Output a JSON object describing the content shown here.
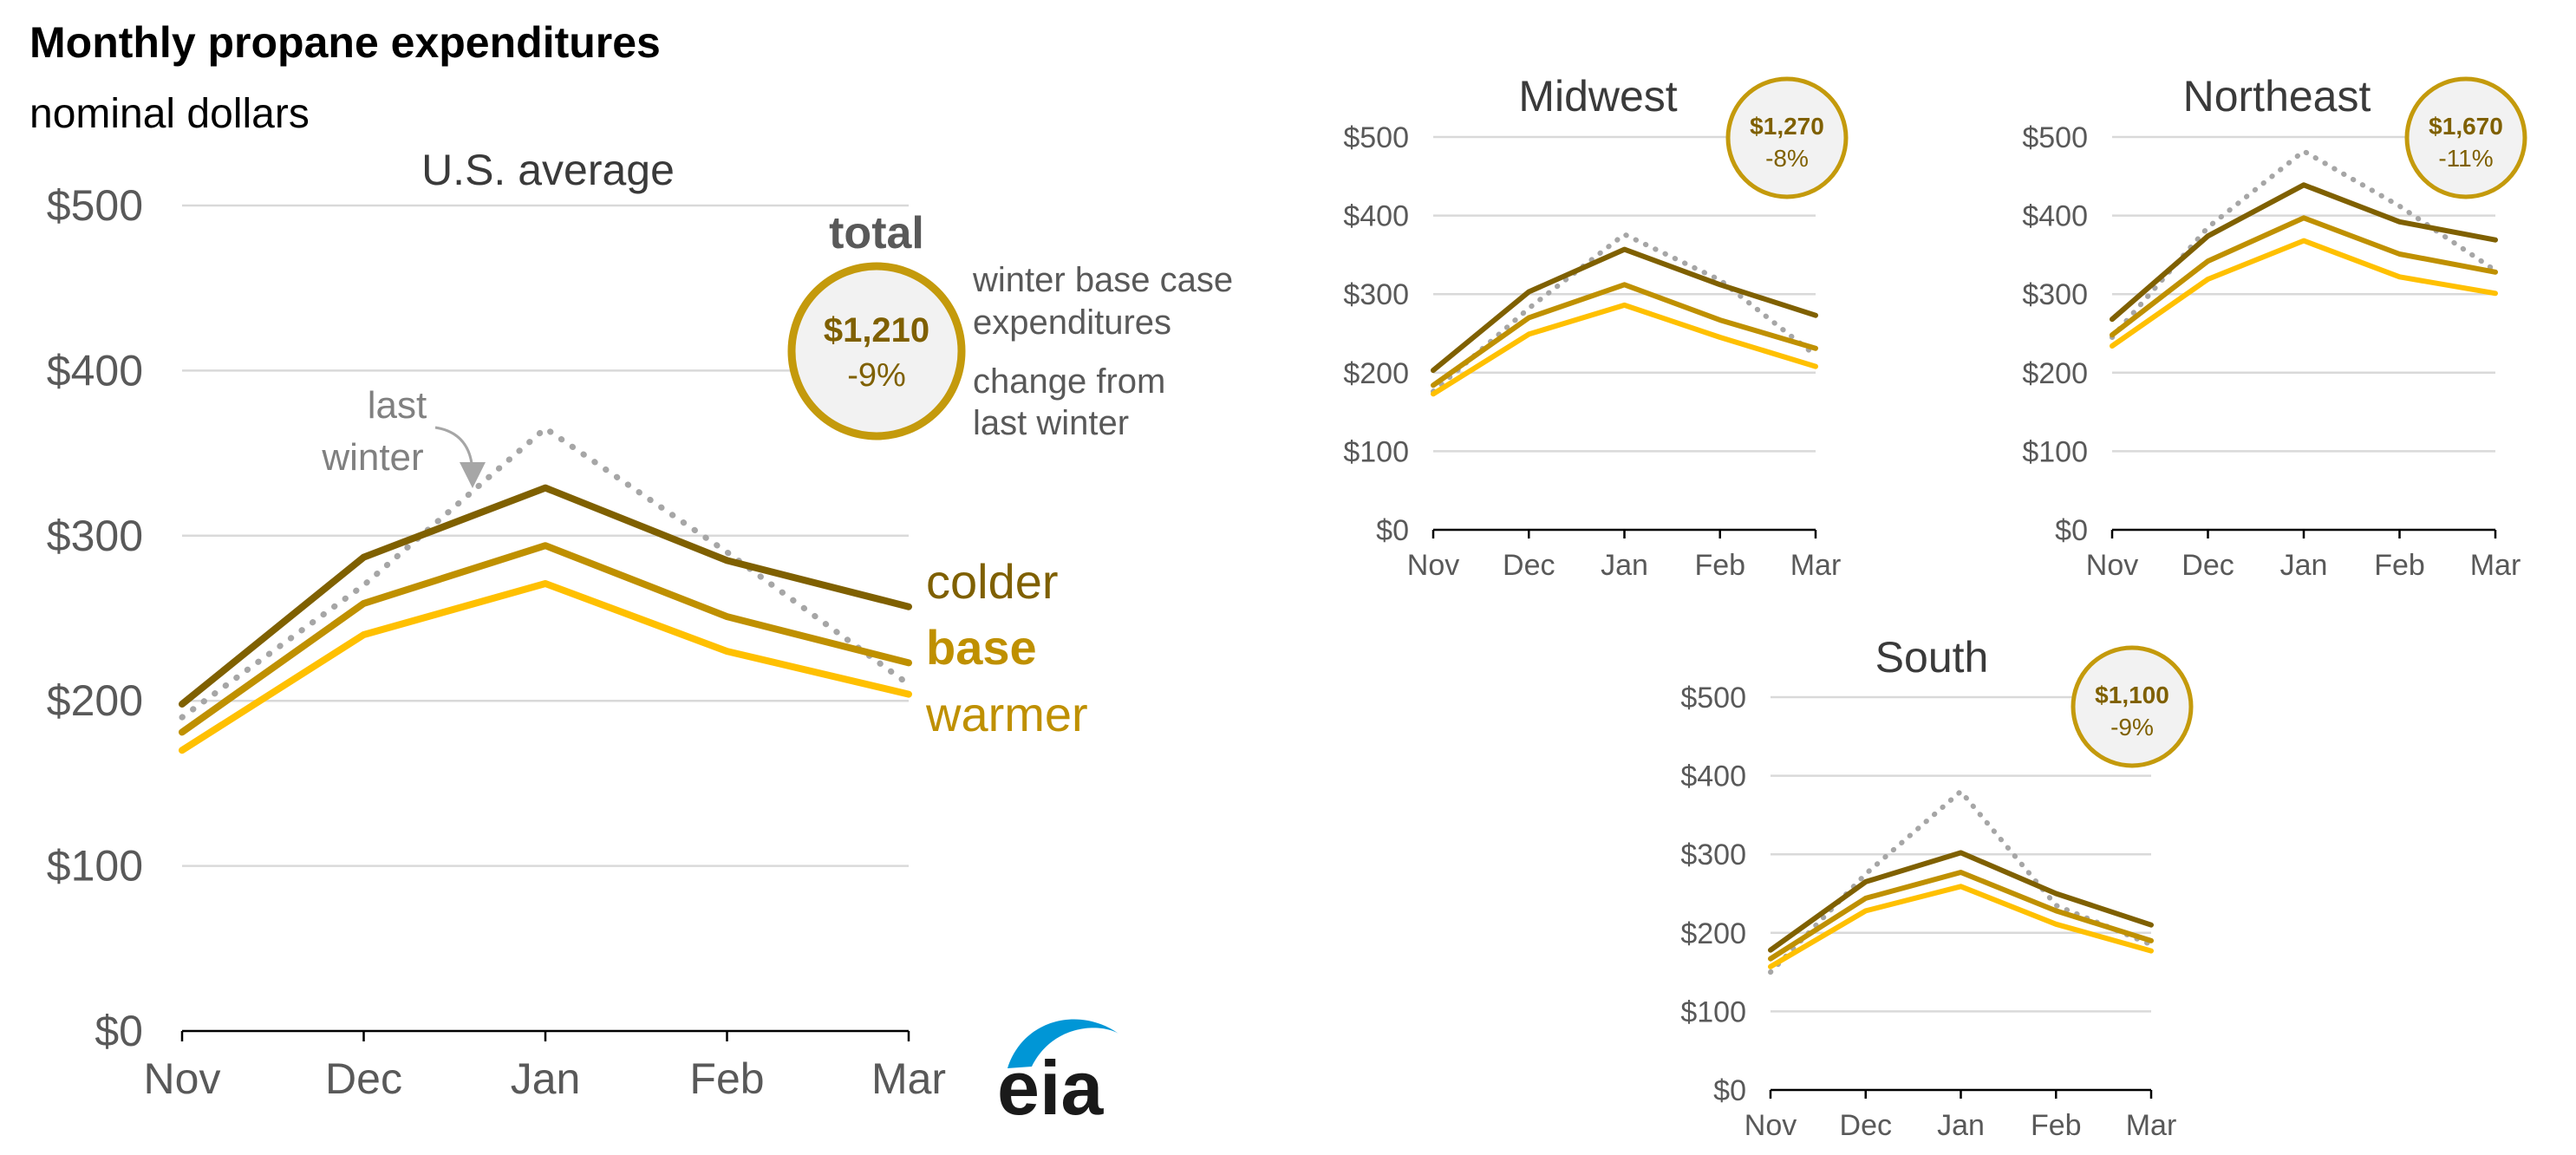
{
  "title": "Monthly propane expenditures",
  "subtitle": "nominal dollars",
  "legend": {
    "total_heading": "total",
    "example_amount": "$1,210",
    "example_change": "-9%",
    "desc_expenditures": [
      "winter base case",
      "expenditures"
    ],
    "desc_change": [
      "change from",
      "last winter"
    ],
    "last_winter_label": [
      "last",
      "winter"
    ]
  },
  "series_labels": {
    "colder": "colder",
    "base": "base",
    "warmer": "warmer"
  },
  "colors": {
    "colder": "#7f6000",
    "base": "#bf9000",
    "warmer": "#ffc000",
    "last_winter": "#a6a6a6",
    "badge_ring": "#c49a0c",
    "badge_fill": "#f2f2f2",
    "badge_amount": "#7f6000",
    "eia_blue": "#0096d6",
    "eia_text": "#1a1a1a"
  },
  "logo": {
    "text": "eia"
  },
  "chart_data": [
    {
      "id": "us",
      "type": "line",
      "title": "U.S. average",
      "categories": [
        "Nov",
        "Dec",
        "Jan",
        "Feb",
        "Mar"
      ],
      "y_ticks": [
        "$0",
        "$100",
        "$200",
        "$300",
        "$400",
        "$500"
      ],
      "ylim": [
        0,
        500
      ],
      "total": "$1,210",
      "change": "-9%",
      "series": [
        {
          "name": "last winter",
          "key": "last_winter",
          "values": [
            190,
            270,
            365,
            290,
            210
          ]
        },
        {
          "name": "colder",
          "key": "colder",
          "values": [
            198,
            287,
            329,
            285,
            257
          ]
        },
        {
          "name": "base",
          "key": "base",
          "values": [
            181,
            259,
            294,
            251,
            223
          ]
        },
        {
          "name": "warmer",
          "key": "warmer",
          "values": [
            170,
            240,
            271,
            230,
            204
          ]
        }
      ]
    },
    {
      "id": "midwest",
      "type": "line",
      "title": "Midwest",
      "categories": [
        "Nov",
        "Dec",
        "Jan",
        "Feb",
        "Mar"
      ],
      "y_ticks": [
        "$0",
        "$100",
        "$200",
        "$300",
        "$400",
        "$500"
      ],
      "ylim": [
        0,
        500
      ],
      "total": "$1,270",
      "change": "-8%",
      "series": [
        {
          "name": "last winter",
          "key": "last_winter",
          "values": [
            176,
            282,
            376,
            318,
            222
          ]
        },
        {
          "name": "colder",
          "key": "colder",
          "values": [
            203,
            303,
            357,
            312,
            273
          ]
        },
        {
          "name": "base",
          "key": "base",
          "values": [
            184,
            270,
            312,
            267,
            231
          ]
        },
        {
          "name": "warmer",
          "key": "warmer",
          "values": [
            173,
            249,
            286,
            245,
            208
          ]
        }
      ]
    },
    {
      "id": "northeast",
      "type": "line",
      "title": "Northeast",
      "categories": [
        "Nov",
        "Dec",
        "Jan",
        "Feb",
        "Mar"
      ],
      "y_ticks": [
        "$0",
        "$100",
        "$200",
        "$300",
        "$400",
        "$500"
      ],
      "ylim": [
        0,
        500
      ],
      "total": "$1,670",
      "change": "-11%",
      "series": [
        {
          "name": "last winter",
          "key": "last_winter",
          "values": [
            245,
            385,
            482,
            412,
            330
          ]
        },
        {
          "name": "colder",
          "key": "colder",
          "values": [
            268,
            374,
            439,
            392,
            369
          ]
        },
        {
          "name": "base",
          "key": "base",
          "values": [
            248,
            342,
            397,
            351,
            328
          ]
        },
        {
          "name": "warmer",
          "key": "warmer",
          "values": [
            234,
            319,
            368,
            322,
            301
          ]
        }
      ]
    },
    {
      "id": "south",
      "type": "line",
      "title": "South",
      "categories": [
        "Nov",
        "Dec",
        "Jan",
        "Feb",
        "Mar"
      ],
      "y_ticks": [
        "$0",
        "$100",
        "$200",
        "$300",
        "$400",
        "$500"
      ],
      "ylim": [
        0,
        500
      ],
      "total": "$1,100",
      "change": "-9%",
      "series": [
        {
          "name": "last winter",
          "key": "last_winter",
          "values": [
            150,
            275,
            380,
            235,
            185
          ]
        },
        {
          "name": "colder",
          "key": "colder",
          "values": [
            178,
            265,
            302,
            250,
            210
          ]
        },
        {
          "name": "base",
          "key": "base",
          "values": [
            167,
            244,
            277,
            228,
            190
          ]
        },
        {
          "name": "warmer",
          "key": "warmer",
          "values": [
            157,
            228,
            259,
            211,
            177
          ]
        }
      ]
    }
  ]
}
